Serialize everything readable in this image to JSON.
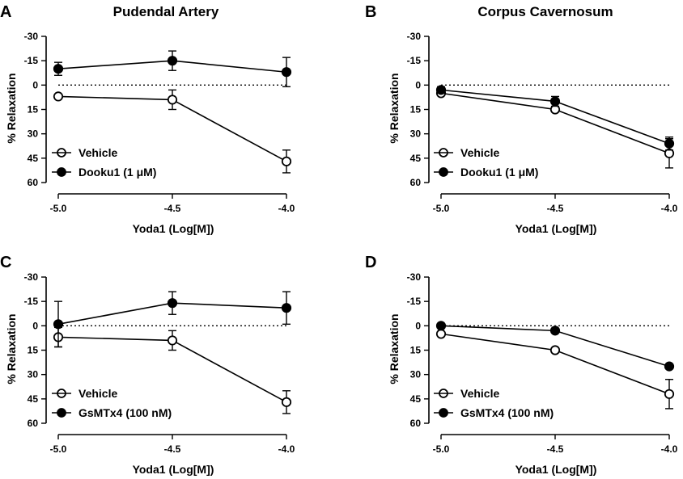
{
  "chart_data": [
    {
      "type": "line",
      "panel_label": "A",
      "title": "Pudendal Artery",
      "xlabel": "Yoda1 (Log[M])",
      "ylabel": "% Relaxation",
      "x": [
        -5.0,
        -4.5,
        -4.0
      ],
      "x_tick_labels": [
        "-5.0",
        "-4.5",
        "-4.0"
      ],
      "ylim": [
        -30,
        60
      ],
      "y_inverted": true,
      "y_ticks": [
        -30,
        -15,
        0,
        15,
        30,
        45,
        60
      ],
      "y_tick_labels": [
        "-30",
        "-15",
        "0",
        "15",
        "30",
        "45",
        "60"
      ],
      "reference_line": 0,
      "series": [
        {
          "name": "Vehicle",
          "marker": "open-circle",
          "values": [
            7,
            9,
            47
          ],
          "error": [
            0,
            6,
            7
          ]
        },
        {
          "name": "Dooku1 (1 μM)",
          "marker": "filled-circle",
          "values": [
            -10,
            -15,
            -8
          ],
          "error": [
            4,
            6,
            9
          ]
        }
      ]
    },
    {
      "type": "line",
      "panel_label": "B",
      "title": "Corpus Cavernosum",
      "xlabel": "Yoda1 (Log[M])",
      "ylabel": "% Relaxation",
      "x": [
        -5.0,
        -4.5,
        -4.0
      ],
      "x_tick_labels": [
        "-5.0",
        "-4.5",
        "-4.0"
      ],
      "ylim": [
        -30,
        60
      ],
      "y_inverted": true,
      "y_ticks": [
        -30,
        -15,
        0,
        15,
        30,
        45,
        60
      ],
      "y_tick_labels": [
        "-30",
        "-15",
        "0",
        "15",
        "30",
        "45",
        "60"
      ],
      "reference_line": 0,
      "series": [
        {
          "name": "Vehicle",
          "marker": "open-circle",
          "values": [
            5,
            15,
            42
          ],
          "error": [
            0,
            0,
            9
          ]
        },
        {
          "name": "Dooku1 (1 μM)",
          "marker": "filled-circle",
          "values": [
            3,
            10,
            36
          ],
          "error": [
            2,
            3,
            4
          ]
        }
      ]
    },
    {
      "type": "line",
      "panel_label": "C",
      "title": "",
      "xlabel": "Yoda1 (Log[M])",
      "ylabel": "% Relaxation",
      "x": [
        -5.0,
        -4.5,
        -4.0
      ],
      "x_tick_labels": [
        "-5.0",
        "-4.5",
        "-4.0"
      ],
      "ylim": [
        -30,
        60
      ],
      "y_inverted": true,
      "y_ticks": [
        -30,
        -15,
        0,
        15,
        30,
        45,
        60
      ],
      "y_tick_labels": [
        "-30",
        "-15",
        "0",
        "15",
        "30",
        "45",
        "60"
      ],
      "reference_line": 0,
      "series": [
        {
          "name": "Vehicle",
          "marker": "open-circle",
          "values": [
            7,
            9,
            47
          ],
          "error": [
            6,
            6,
            7
          ]
        },
        {
          "name": "GsMTx4 (100 nM)",
          "marker": "filled-circle",
          "values": [
            -1,
            -14,
            -11
          ],
          "error": [
            14,
            7,
            10
          ]
        }
      ]
    },
    {
      "type": "line",
      "panel_label": "D",
      "title": "",
      "xlabel": "Yoda1 (Log[M])",
      "ylabel": "% Relaxation",
      "x": [
        -5.0,
        -4.5,
        -4.0
      ],
      "x_tick_labels": [
        "-5.0",
        "-4.5",
        "-4.0"
      ],
      "ylim": [
        -30,
        60
      ],
      "y_inverted": true,
      "y_ticks": [
        -30,
        -15,
        0,
        15,
        30,
        45,
        60
      ],
      "y_tick_labels": [
        "-30",
        "-15",
        "0",
        "15",
        "30",
        "45",
        "60"
      ],
      "reference_line": 0,
      "series": [
        {
          "name": "Vehicle",
          "marker": "open-circle",
          "values": [
            5,
            15,
            42
          ],
          "error": [
            0,
            0,
            9
          ]
        },
        {
          "name": "GsMTx4 (100 nM)",
          "marker": "filled-circle",
          "values": [
            0,
            3,
            25
          ],
          "error": [
            0,
            0,
            0
          ]
        }
      ]
    }
  ]
}
